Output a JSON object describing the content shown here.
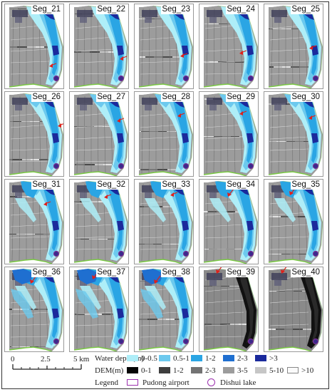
{
  "panels": [
    {
      "label": "Seg_21",
      "arrow": [
        62,
        86,
        "left"
      ],
      "stage": 0,
      "dem": 0
    },
    {
      "label": "Seg_22",
      "arrow": [
        70,
        76,
        "left"
      ],
      "stage": 0,
      "dem": 0
    },
    {
      "label": "Seg_23",
      "arrow": [
        64,
        72,
        "left"
      ],
      "stage": 0,
      "dem": 0
    },
    {
      "label": "Seg_24",
      "arrow": [
        56,
        68,
        "left"
      ],
      "stage": 0,
      "dem": 0
    },
    {
      "label": "Seg_25",
      "arrow": [
        63,
        61,
        "left"
      ],
      "stage": 0,
      "dem": 0
    },
    {
      "label": "Seg_26",
      "arrow": [
        74,
        47,
        "left"
      ],
      "stage": 1,
      "dem": 0
    },
    {
      "label": "Seg_27",
      "arrow": [
        66,
        40,
        "left"
      ],
      "stage": 1,
      "dem": 0
    },
    {
      "label": "Seg_28",
      "arrow": [
        60,
        33,
        "left"
      ],
      "stage": 1,
      "dem": 0
    },
    {
      "label": "Seg_29",
      "arrow": [
        56,
        30,
        "left"
      ],
      "stage": 1,
      "dem": 0
    },
    {
      "label": "Seg_30",
      "arrow": [
        62,
        36,
        "left"
      ],
      "stage": 1,
      "dem": 0
    },
    {
      "label": "Seg_31",
      "arrow": [
        54,
        34,
        "left"
      ],
      "stage": 2,
      "dem": 0
    },
    {
      "label": "Seg_32",
      "arrow": [
        48,
        24,
        "left"
      ],
      "stage": 2,
      "dem": 0
    },
    {
      "label": "Seg_33",
      "arrow": [
        50,
        21,
        "left"
      ],
      "stage": 2,
      "dem": 0
    },
    {
      "label": "Seg_34",
      "arrow": [
        40,
        19,
        "down"
      ],
      "stage": 2,
      "dem": 0
    },
    {
      "label": "Seg_35",
      "arrow": [
        36,
        17,
        "down"
      ],
      "stage": 2,
      "dem": 0
    },
    {
      "label": "Seg_36",
      "arrow": [
        36,
        18,
        "down"
      ],
      "stage": 3,
      "dem": 0
    },
    {
      "label": "Seg_37",
      "arrow": [
        32,
        12,
        "down"
      ],
      "stage": 3,
      "dem": 0
    },
    {
      "label": "Seg_38",
      "arrow": [
        28,
        18,
        "down"
      ],
      "stage": 3,
      "dem": 0
    },
    {
      "label": "Seg_39",
      "arrow": [
        24,
        4,
        "down"
      ],
      "stage": 3,
      "dem": 1
    },
    {
      "label": "Seg_40",
      "arrow": [
        24,
        4,
        "down"
      ],
      "stage": 3,
      "dem": 1
    }
  ],
  "scalebar": {
    "labels": [
      "0",
      "2.5",
      "5 km"
    ]
  },
  "legend": {
    "water_title": "Water depth(m)",
    "dem_title": "DEM(m)",
    "legend_title": "Legend",
    "water_classes": [
      {
        "label": "0-0.5",
        "color": "#aeeef8"
      },
      {
        "label": "0.5-1",
        "color": "#6cc9ee"
      },
      {
        "label": "1-2",
        "color": "#2aa5e4"
      },
      {
        "label": "2-3",
        "color": "#1f6fd0"
      },
      {
        "label": ">3",
        "color": "#1b2a9c"
      }
    ],
    "dem_classes": [
      {
        "label": "0-1",
        "color": "#050505"
      },
      {
        "label": "1-2",
        "color": "#3e3e3e"
      },
      {
        "label": "2-3",
        "color": "#737373"
      },
      {
        "label": "3-5",
        "color": "#9c9c9c"
      },
      {
        "label": "5-10",
        "color": "#c6c6c6"
      },
      {
        "label": ">10",
        "color": "#fafafa"
      }
    ],
    "symbols": [
      {
        "label": "Pudong airport",
        "color": "#9b2fae",
        "shape": "square"
      },
      {
        "label": "Dishui lake",
        "color": "#9b2fae",
        "shape": "circle"
      }
    ]
  },
  "colors": {
    "arrow": "#e0201a",
    "boundary": "#7ac943",
    "lake": "#7b2f95"
  }
}
